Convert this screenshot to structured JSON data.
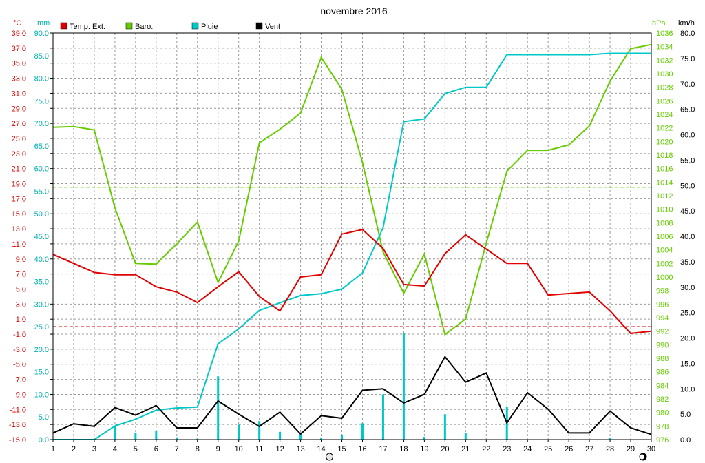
{
  "chart_data": {
    "type": "line",
    "title": "novembre 2016",
    "x": [
      1,
      2,
      3,
      4,
      5,
      6,
      7,
      8,
      9,
      10,
      11,
      12,
      13,
      14,
      15,
      16,
      17,
      18,
      19,
      20,
      21,
      22,
      23,
      24,
      25,
      26,
      27,
      28,
      29,
      30
    ],
    "axes": {
      "temp": {
        "unit": "°C",
        "min": -15.0,
        "max": 39.0,
        "ticks": [
          "39.0",
          "37.0",
          "35.0",
          "33.0",
          "31.0",
          "29.0",
          "27.0",
          "25.0",
          "23.0",
          "21.0",
          "19.0",
          "17.0",
          "15.0",
          "13.0",
          "11.0",
          "9.0",
          "7.0",
          "5.0",
          "3.0",
          "1.0",
          "-1.0",
          "-3.0",
          "-5.0",
          "-7.0",
          "-9.0",
          "-11.0",
          "-13.0",
          "-15.0"
        ]
      },
      "rain": {
        "unit": "mm",
        "min": 0.0,
        "max": 90.0,
        "ticks": [
          "90.0",
          "85.0",
          "80.0",
          "75.0",
          "70.0",
          "65.0",
          "60.0",
          "55.0",
          "50.0",
          "45.0",
          "40.0",
          "35.0",
          "30.0",
          "25.0",
          "20.0",
          "15.0",
          "10.0",
          "5.0",
          "0.0"
        ]
      },
      "baro": {
        "unit": "hPa",
        "min": 976,
        "max": 1036,
        "ticks": [
          "1036",
          "1034",
          "1032",
          "1030",
          "1028",
          "1026",
          "1024",
          "1022",
          "1020",
          "1018",
          "1016",
          "1014",
          "1012",
          "1010",
          "1008",
          "1006",
          "1004",
          "1002",
          "1000",
          "998",
          "996",
          "994",
          "992",
          "990",
          "988",
          "986",
          "984",
          "982",
          "980",
          "978",
          "976"
        ]
      },
      "wind": {
        "unit": "km/h",
        "min": 0.0,
        "max": 80.0,
        "ticks": [
          "80.0",
          "75.0",
          "70.0",
          "65.0",
          "60.0",
          "55.0",
          "50.0",
          "45.0",
          "40.0",
          "35.0",
          "30.0",
          "25.0",
          "20.0",
          "15.0",
          "10.0",
          "5.0",
          "0.0"
        ]
      }
    },
    "legend": [
      "Temp. Ext.",
      "Baro.",
      "Pluie",
      "Vent"
    ],
    "series": [
      {
        "name": "Temp. Ext.",
        "axis": "temp",
        "color": "#e00000",
        "values": [
          9.6,
          8.4,
          7.2,
          6.9,
          6.9,
          5.3,
          4.6,
          3.2,
          5.3,
          7.3,
          4.0,
          2.1,
          6.6,
          6.9,
          12.3,
          12.9,
          10.4,
          5.6,
          5.4,
          9.7,
          12.2,
          10.3,
          8.4,
          8.4,
          4.2,
          4.4,
          4.6,
          2.1,
          -0.9,
          -0.6
        ]
      },
      {
        "name": "Baro.",
        "axis": "baro",
        "color": "#66cc00",
        "values": [
          1022.1,
          1022.2,
          1021.7,
          1010.2,
          1002.0,
          1001.9,
          1004.9,
          1008.1,
          999.2,
          1005.3,
          1019.8,
          1021.8,
          1024.2,
          1032.4,
          1027.7,
          1016.9,
          1003.7,
          997.6,
          1003.4,
          991.5,
          993.8,
          1005.0,
          1015.6,
          1018.7,
          1018.7,
          1019.5,
          1022.3,
          1028.9,
          1033.7,
          1034.3
        ]
      },
      {
        "name": "Pluie",
        "axis": "rain",
        "color": "#00c8c8",
        "values": [
          0.0,
          0.0,
          0.0,
          3.0,
          4.5,
          6.5,
          7.0,
          7.2,
          21.2,
          24.5,
          28.6,
          30.3,
          31.9,
          32.3,
          33.3,
          36.9,
          46.9,
          70.4,
          71.0,
          76.6,
          78.0,
          78.0,
          85.2,
          85.2,
          85.2,
          85.2,
          85.2,
          85.5,
          85.5,
          85.5
        ]
      },
      {
        "name": "Vent",
        "axis": "wind",
        "color": "#000000",
        "values": [
          1.3,
          3.1,
          2.6,
          6.3,
          4.8,
          6.7,
          2.3,
          2.3,
          7.6,
          5.0,
          2.6,
          5.4,
          1.1,
          4.7,
          4.2,
          9.7,
          10.0,
          7.2,
          8.9,
          16.3,
          11.3,
          13.1,
          3.3,
          9.2,
          6.0,
          1.3,
          1.3,
          5.6,
          2.3,
          1.0
        ]
      }
    ],
    "rain_daily": [
      0,
      0,
      0,
      3.0,
      1.5,
      2.0,
      0.5,
      0.2,
      14.0,
      3.3,
      4.1,
      1.7,
      1.6,
      0.4,
      1.0,
      3.6,
      10.0,
      23.5,
      0.6,
      5.6,
      1.4,
      0,
      7.2,
      0,
      0,
      0,
      0,
      0.3,
      0,
      0
    ],
    "reference_lines": [
      {
        "axis": "baro",
        "value": 1013.25,
        "color": "#66cc00"
      },
      {
        "axis": "temp",
        "value": 0.0,
        "color": "#e00000"
      }
    ],
    "moon_phases": [
      {
        "day": 14.4,
        "phase": "full"
      },
      {
        "day": 29.6,
        "phase": "new"
      }
    ],
    "grid": true,
    "legend_placement": "top-left"
  }
}
